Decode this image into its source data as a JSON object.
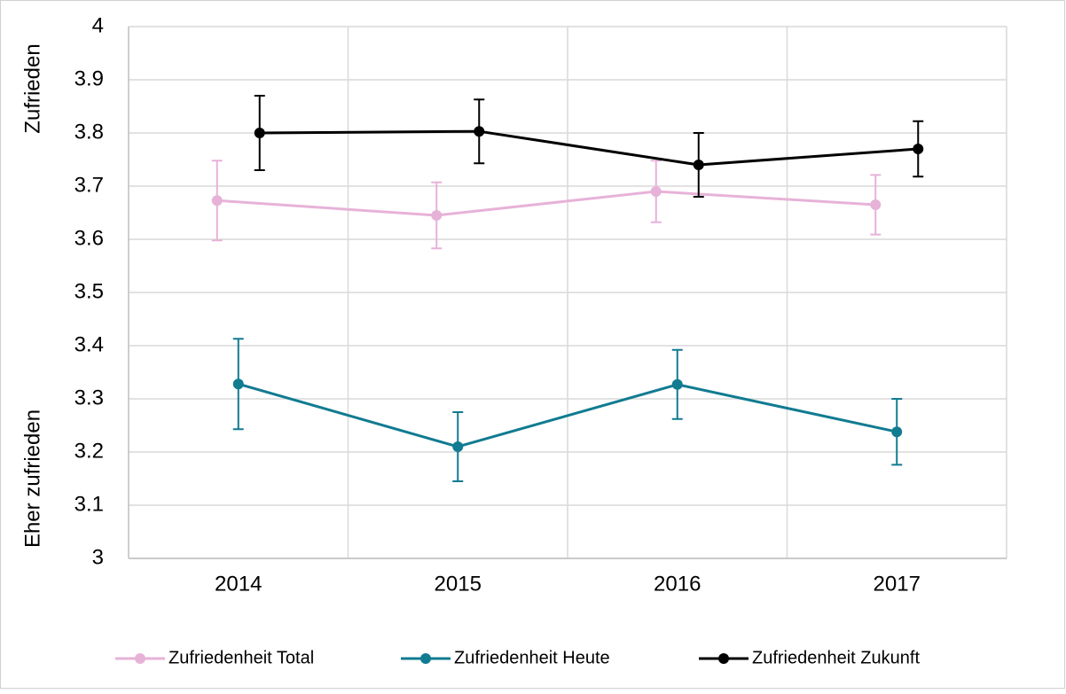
{
  "chart_data": {
    "type": "line",
    "categories": [
      "2014",
      "2015",
      "2016",
      "2017"
    ],
    "annotations": [
      "Zufrieden",
      "Eher zufrieden"
    ],
    "ylim": [
      3,
      4
    ],
    "yticks": [
      3,
      3.1,
      3.2,
      3.3,
      3.4,
      3.5,
      3.6,
      3.7,
      3.8,
      3.9,
      4
    ],
    "grid": true,
    "legend": "bottom",
    "series": [
      {
        "name": "Zufriedenheit Total",
        "color": "#e7b2d8",
        "values": [
          3.673,
          3.645,
          3.69,
          3.665
        ],
        "errors": [
          0.075,
          0.062,
          0.058,
          0.056
        ]
      },
      {
        "name": "Zufriedenheit Heute",
        "color": "#117b91",
        "values": [
          3.328,
          3.21,
          3.327,
          3.238
        ],
        "errors": [
          0.085,
          0.065,
          0.065,
          0.062
        ]
      },
      {
        "name": "Zufriedenheit Zukunft",
        "color": "#000000",
        "values": [
          3.8,
          3.803,
          3.74,
          3.77
        ],
        "errors": [
          0.07,
          0.06,
          0.06,
          0.052
        ]
      }
    ]
  }
}
